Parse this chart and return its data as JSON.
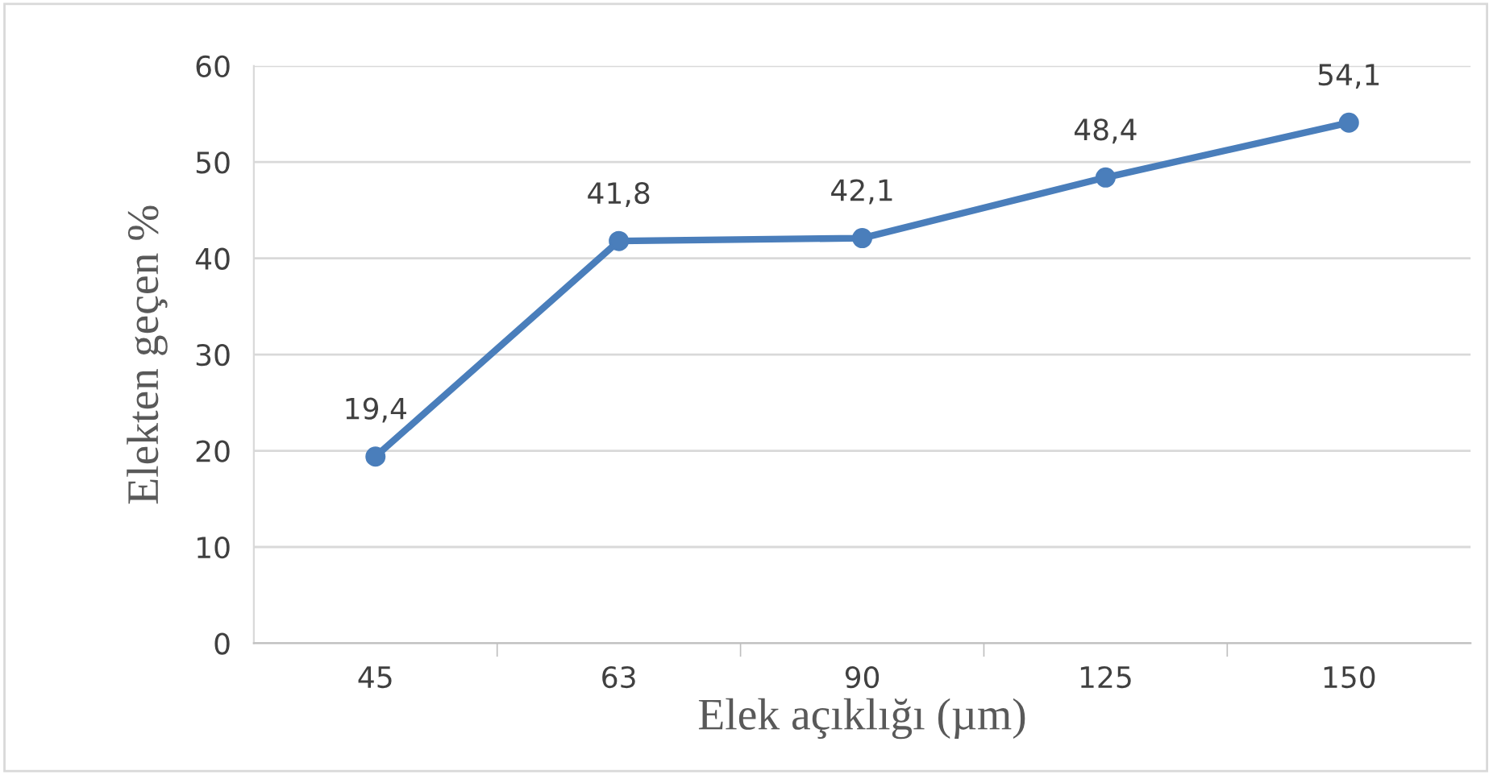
{
  "chart_data": {
    "type": "line",
    "xlabel": "Elek açıklığı (µm)",
    "ylabel": "Elekten geçen %",
    "categories": [
      "45",
      "63",
      "90",
      "125",
      "150"
    ],
    "series": [
      {
        "color": "#4a7ebb",
        "values": [
          19.4,
          41.8,
          42.1,
          48.4,
          54.1
        ],
        "value_labels": [
          "19,4",
          "41,8",
          "42,1",
          "48,4",
          "54,1"
        ]
      }
    ],
    "ylim": [
      0,
      60
    ],
    "yticks": [
      0,
      10,
      20,
      30,
      40,
      50,
      60
    ],
    "grid": "y",
    "marker": "circle",
    "line_style": "solid",
    "legend": false
  }
}
